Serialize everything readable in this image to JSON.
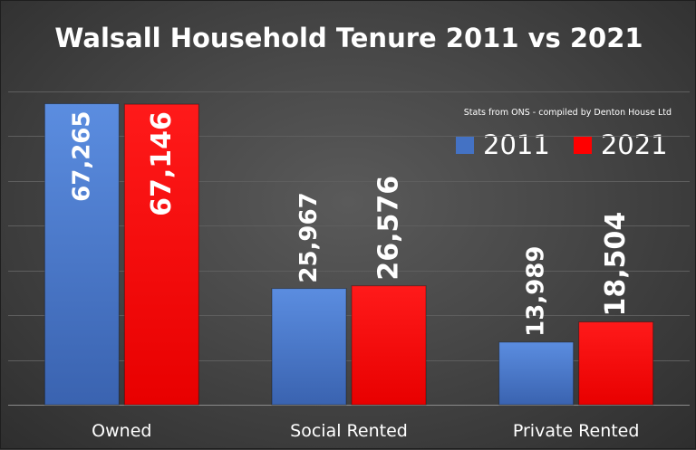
{
  "chart_data": {
    "type": "bar",
    "title": "Walsall Household Tenure 2011 vs 2021",
    "subtitle": "Stats from ONS - compiled by Denton House Ltd",
    "categories": [
      "Owned",
      "Social Rented",
      "Private Rented"
    ],
    "series": [
      {
        "name": "2011",
        "values": [
          67265,
          25967,
          13989
        ],
        "labels": [
          "67,265",
          "25,967",
          "13,989"
        ],
        "color": "#4472c4"
      },
      {
        "name": "2021",
        "values": [
          67146,
          26576,
          18504
        ],
        "labels": [
          "67,146",
          "26,576",
          "18,504"
        ],
        "color": "#ff0000"
      }
    ],
    "ylim": [
      0,
      70000
    ],
    "y_gridline_step": 10000,
    "grid": true,
    "y_tick_labels_visible": false,
    "legend_position": "top-right",
    "data_label_orientation": "vertical",
    "data_label_position": [
      "inside-end",
      "outside-end",
      "outside-end"
    ]
  }
}
